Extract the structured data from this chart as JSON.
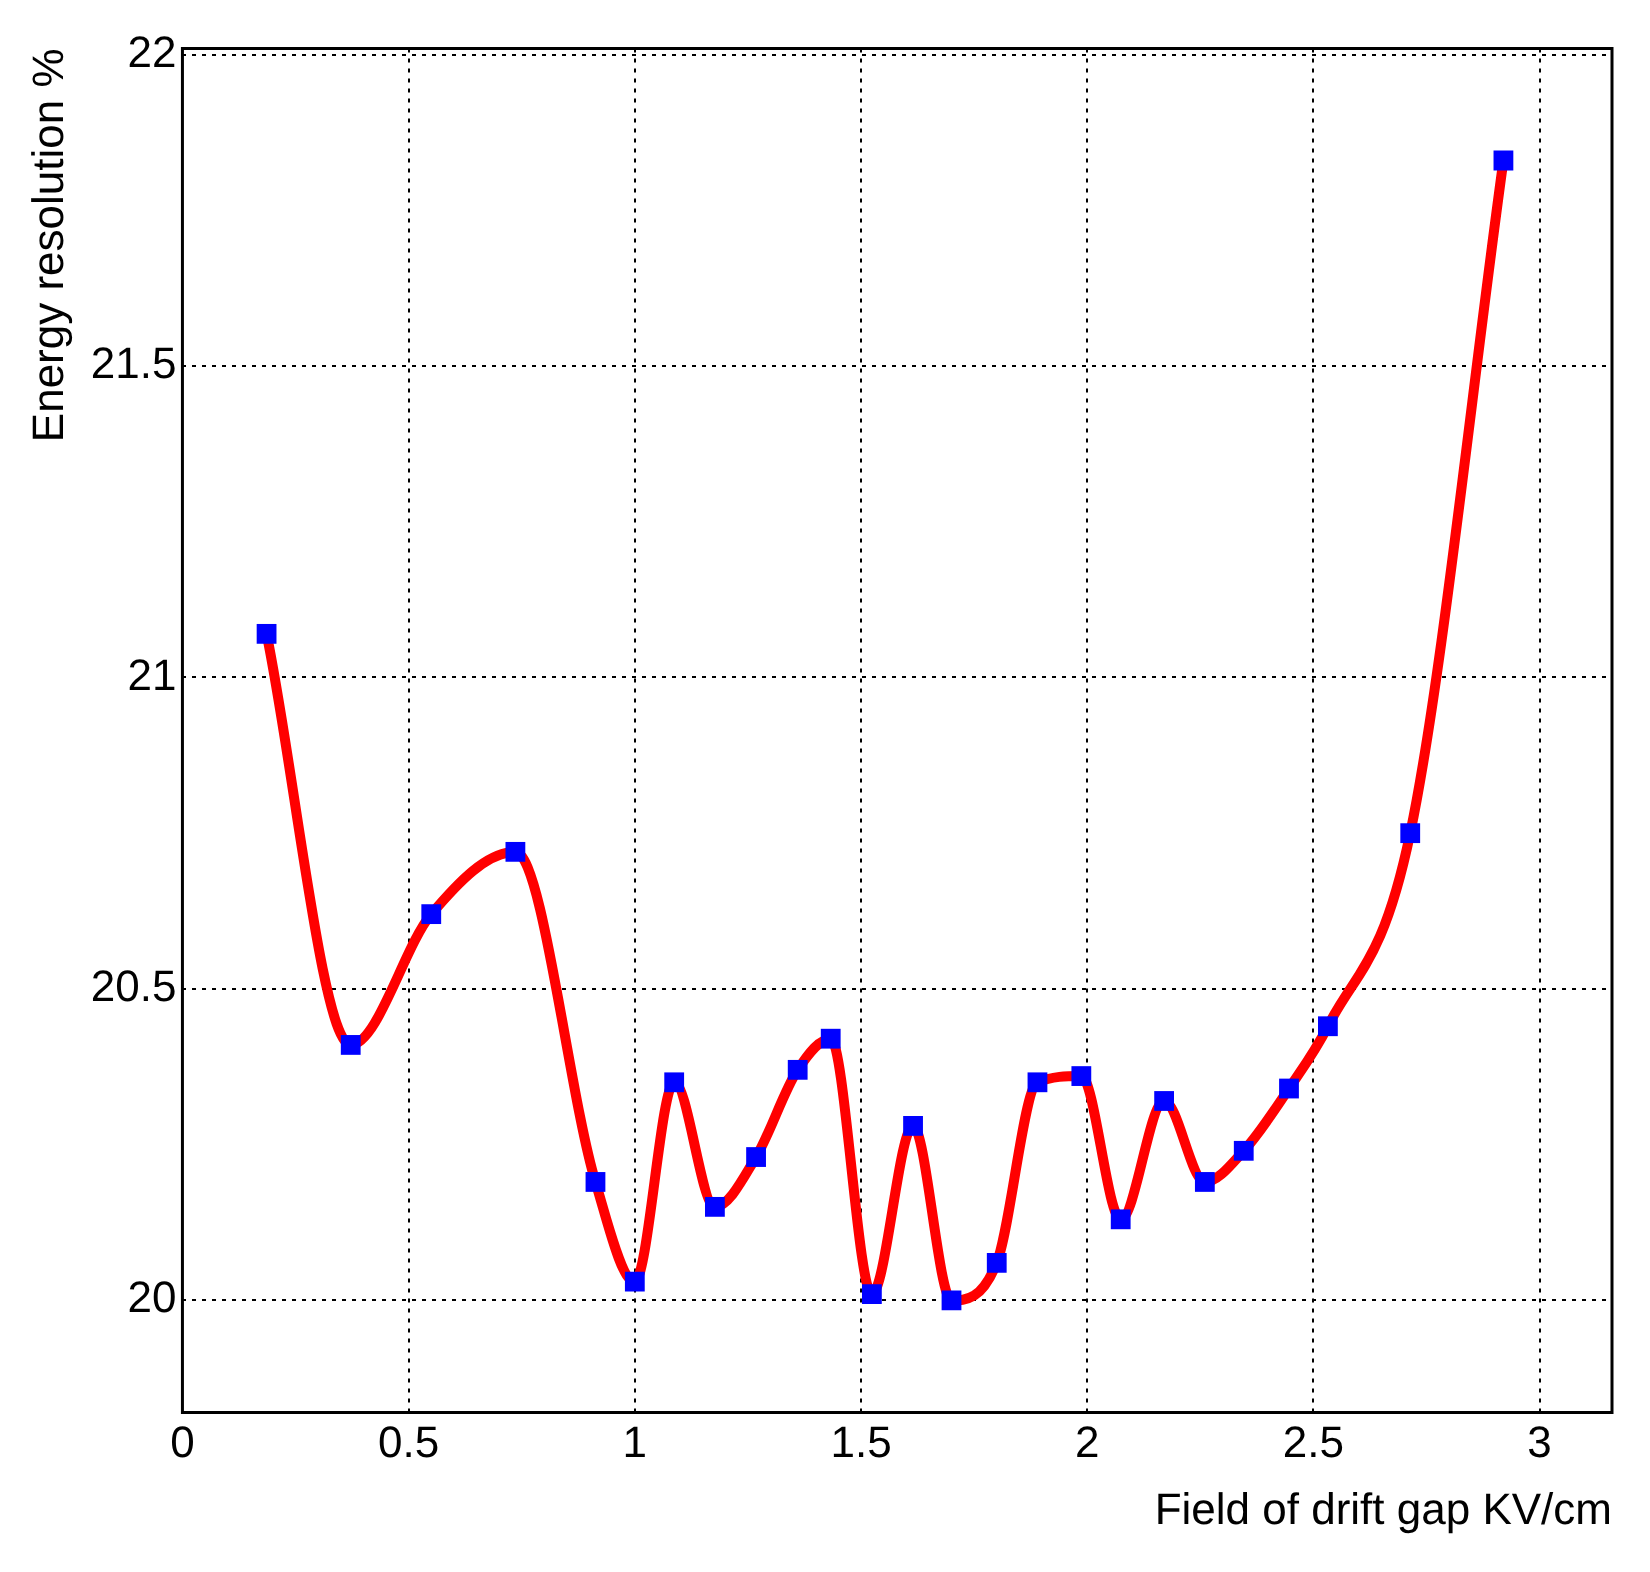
{
  "chart_data": {
    "type": "line",
    "xlabel": "Field of drift gap KV/cm",
    "ylabel": "Energy resolution %",
    "x": [
      0.186,
      0.372,
      0.55,
      0.736,
      0.913,
      1.0,
      1.087,
      1.177,
      1.268,
      1.36,
      1.433,
      1.524,
      1.615,
      1.7,
      1.8,
      1.89,
      1.987,
      2.074,
      2.17,
      2.26,
      2.346,
      2.446,
      2.532,
      2.714,
      2.92
    ],
    "series": [
      {
        "type": "line",
        "color": "#ff0000",
        "marker": "none",
        "line_style": "solid",
        "values": [
          21.07,
          20.41,
          20.62,
          20.72,
          20.19,
          20.03,
          20.35,
          20.15,
          20.23,
          20.37,
          20.42,
          20.01,
          20.28,
          20.0,
          20.06,
          20.35,
          20.36,
          20.13,
          20.32,
          20.19,
          20.24,
          20.34,
          20.44,
          20.75,
          21.83
        ]
      },
      {
        "type": "scatter",
        "color": "#0000ff",
        "marker": "square",
        "values": [
          21.07,
          20.41,
          20.62,
          20.72,
          20.19,
          20.03,
          20.35,
          20.15,
          20.23,
          20.37,
          20.42,
          20.01,
          20.28,
          20.0,
          20.06,
          20.35,
          20.36,
          20.13,
          20.32,
          20.19,
          20.24,
          20.34,
          20.44,
          20.75,
          21.83
        ]
      }
    ],
    "xlim": [
      0,
      3.16
    ],
    "xticks": [
      0,
      0.5,
      1,
      1.5,
      2,
      2.5,
      3
    ],
    "ylim": [
      19.82,
      22.01
    ],
    "yticks": [
      20,
      20.5,
      21,
      21.5,
      22
    ],
    "grid": true,
    "legend": false
  }
}
